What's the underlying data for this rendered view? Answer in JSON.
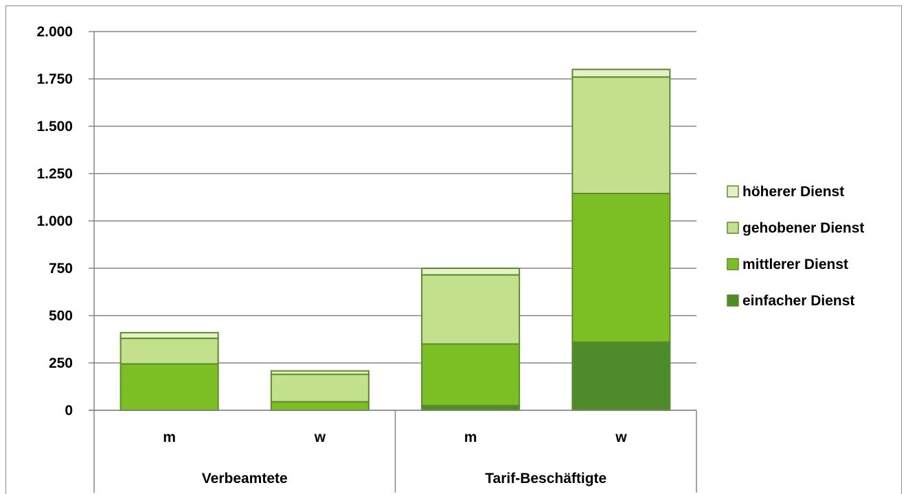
{
  "chart_data": {
    "type": "bar",
    "stacked": true,
    "title": "",
    "xlabel": "",
    "ylabel": "",
    "ylim": [
      0,
      2000
    ],
    "y_ticks": [
      0,
      250,
      500,
      750,
      1000,
      1250,
      1500,
      1750,
      2000
    ],
    "y_tick_labels": [
      "0",
      "250",
      "500",
      "750",
      "1.000",
      "1.250",
      "1.500",
      "1.750",
      "2.000"
    ],
    "grid": true,
    "legend_position": "right",
    "groups": [
      {
        "label": "Verbeamtete",
        "categories": [
          "m",
          "w"
        ]
      },
      {
        "label": "Tarif-Beschäftigte",
        "categories": [
          "m",
          "w"
        ]
      }
    ],
    "categories": [
      "m",
      "w",
      "m",
      "w"
    ],
    "series": [
      {
        "name": "einfacher Dienst",
        "color": "#4e8c2b",
        "values": [
          0,
          0,
          25,
          360
        ]
      },
      {
        "name": "mittlerer Dienst",
        "color": "#7bbf24",
        "values": [
          245,
          45,
          325,
          785
        ]
      },
      {
        "name": "gehobener Dienst",
        "color": "#c3e18d",
        "values": [
          135,
          145,
          365,
          615
        ]
      },
      {
        "name": "höherer Dienst",
        "color": "#e2f1c8",
        "values": [
          30,
          18,
          35,
          40
        ]
      }
    ],
    "legend_order": [
      "höherer Dienst",
      "gehobener Dienst",
      "mittlerer Dienst",
      "einfacher Dienst"
    ],
    "colors": {
      "bar_border": "#5c8a2a",
      "grid": "#868686",
      "axis": "#868686"
    }
  }
}
